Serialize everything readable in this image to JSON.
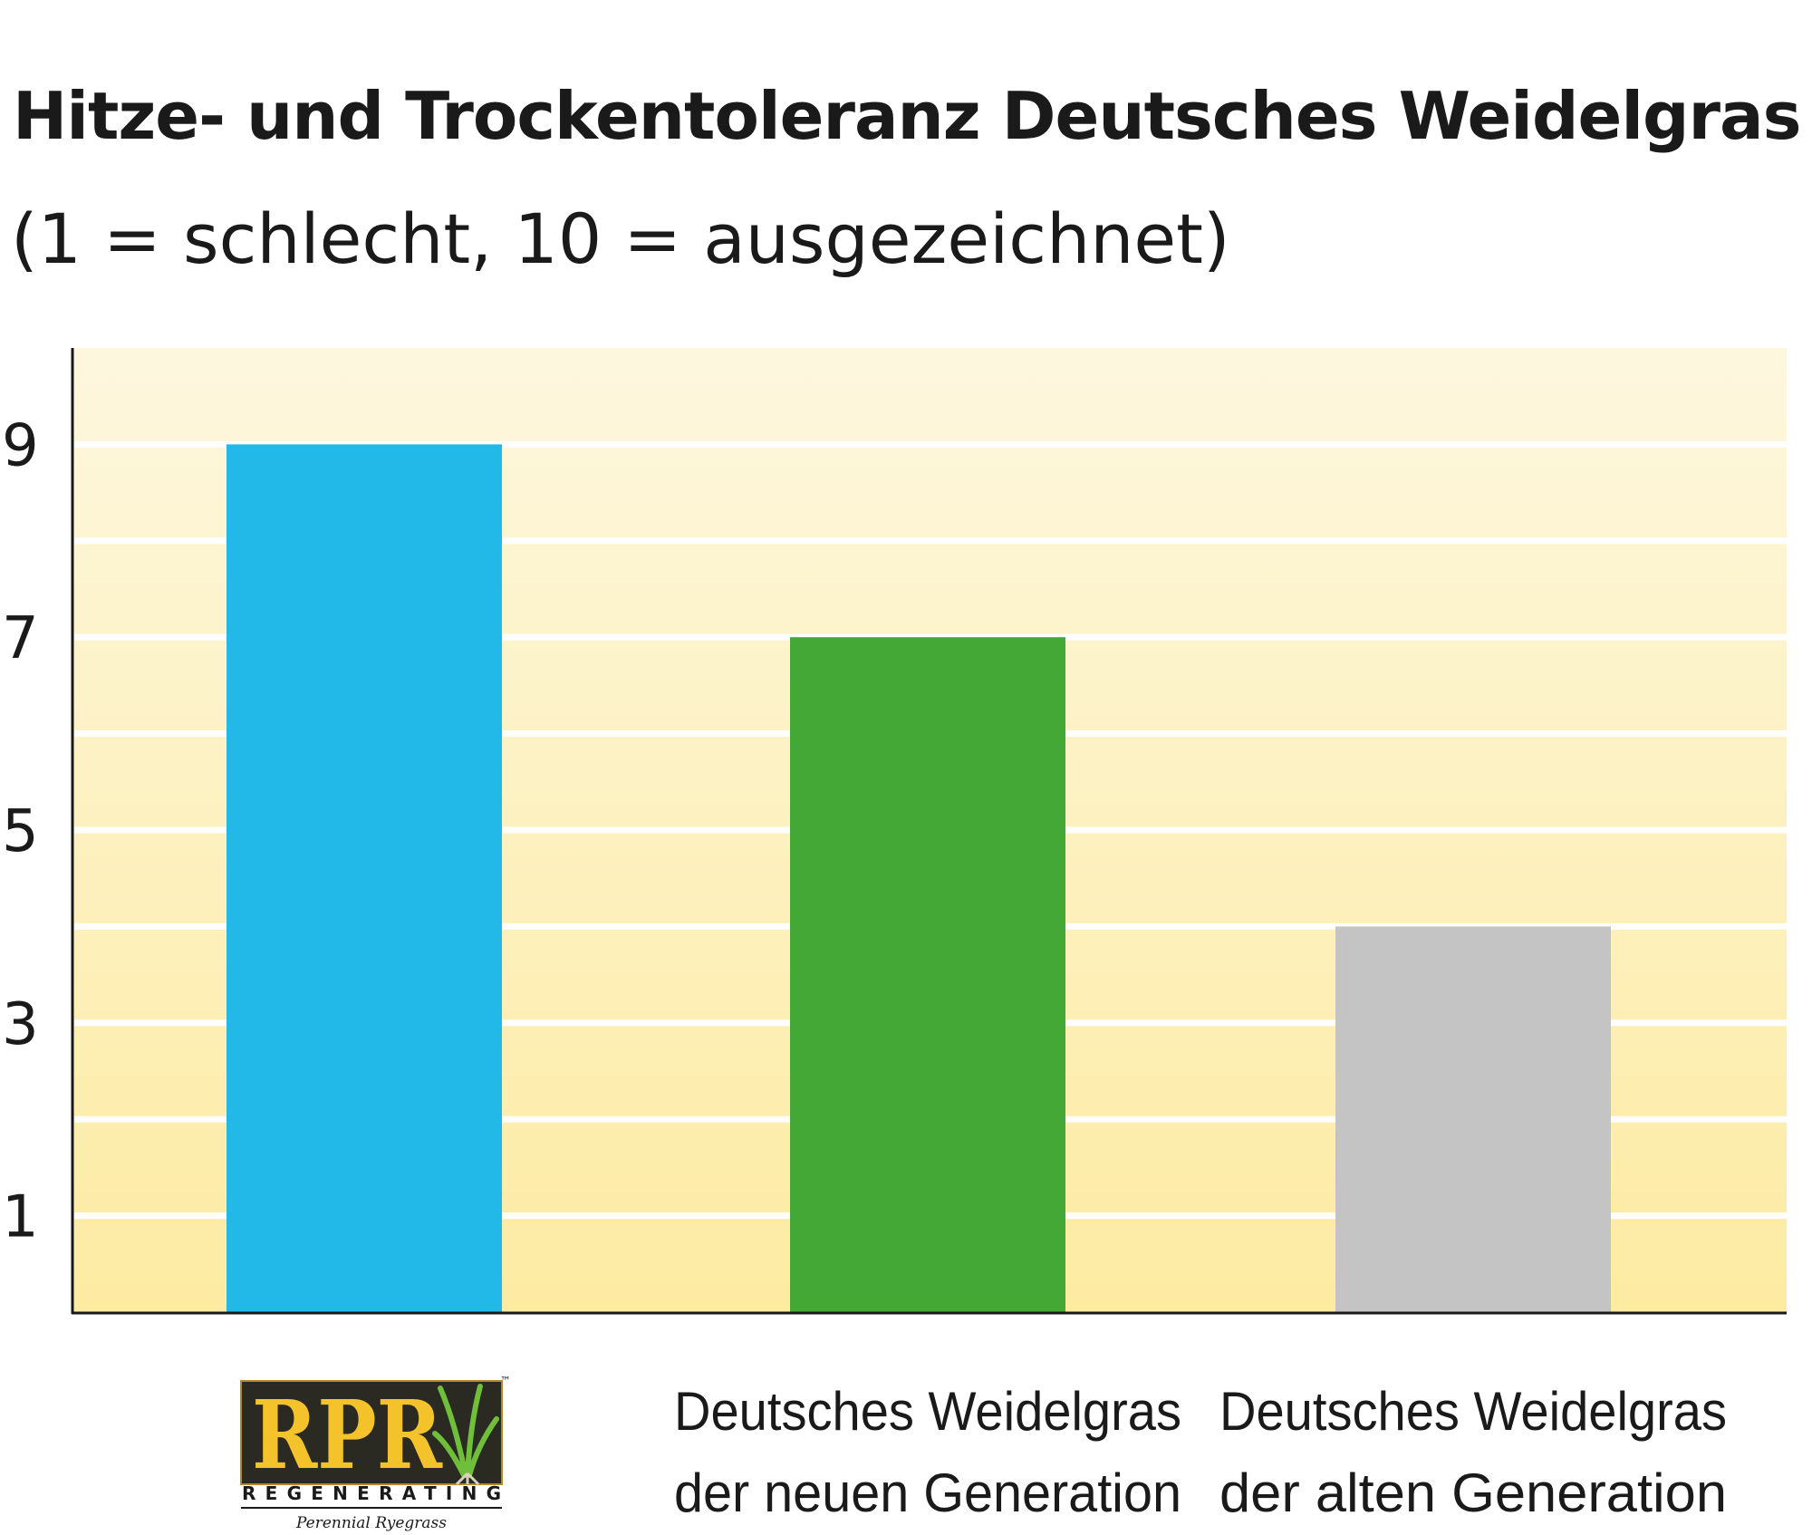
{
  "chart_data": {
    "type": "bar",
    "title": "Hitze- und Trockentoleranz Deutsches Weidelgras",
    "subtitle": "(1 = schlecht, 10 = ausgezeichnet)",
    "xlabel": "",
    "ylabel": "",
    "ylim": [
      0,
      10
    ],
    "yticks": [
      1,
      3,
      5,
      7,
      9
    ],
    "grid": true,
    "legend": "none",
    "categories": [
      {
        "name": "RPR Regenerating Perennial Ryegrass",
        "type": "logo",
        "value": 9,
        "color": "#22b9e9",
        "logo": {
          "brand": "RPR",
          "tagline": "REGENERATING",
          "trademark": "™",
          "caption": "Perennial Ryegrass"
        }
      },
      {
        "name": "Deutsches Weidelgras der neuen Generation",
        "type": "text",
        "value": 7,
        "color": "#43a836",
        "lines": [
          "Deutsches Weidelgras",
          "der neuen Generation"
        ]
      },
      {
        "name": "Deutsches Weidelgras der alten Generation",
        "type": "text",
        "value": 4,
        "color": "#c4c4c4",
        "lines": [
          "Deutsches Weidelgras",
          "der alten Generation"
        ]
      }
    ],
    "colors": {
      "background_top": "#fdf7de",
      "background_bottom": "#fdeba2",
      "gridline": "#ffffff",
      "axis": "#1a1a1a"
    }
  }
}
